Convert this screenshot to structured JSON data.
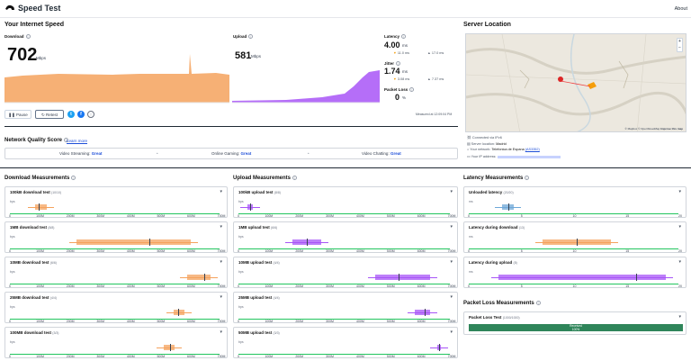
{
  "app": {
    "title": "Speed Test",
    "about": "About"
  },
  "speed": {
    "section_title": "Your Internet Speed",
    "download": {
      "label": "Download",
      "value": "702",
      "unit": "Mbps",
      "color": "#f5a25d"
    },
    "upload": {
      "label": "Upload",
      "value": "581",
      "unit": "Mbps",
      "color": "#a855f7"
    },
    "latency": {
      "label": "Latency",
      "value": "4.00",
      "unit": "ms",
      "down": "11.0 ms",
      "up": "17.0 ms"
    },
    "jitter": {
      "label": "Jitter",
      "value": "1.74",
      "unit": "ms",
      "down": "3.08 ms",
      "up": "7.37 ms"
    },
    "packet_loss": {
      "label": "Packet Loss",
      "value": "0",
      "unit": "%"
    },
    "measured_at": "Measured at 12:09:04 PM",
    "pause": "Pause",
    "retest": "Retest"
  },
  "server": {
    "section_title": "Server Location",
    "connected": "Connected via IPv6",
    "location_label": "Server location:",
    "location": "Madrid",
    "network_label": "Your network:",
    "network": "Telefonica de Espana",
    "asn": "(AS3352)",
    "ip_label": "Your IP address:",
    "map_credit": "© Mapbox © OpenStreetMap",
    "map_improve": "Improve this map"
  },
  "quality": {
    "title": "Network Quality Score",
    "learn_more": "Learn more",
    "items": [
      {
        "label": "Video Streaming:",
        "value": "Great"
      },
      {
        "label": "Online Gaming:",
        "value": "Great"
      },
      {
        "label": "Video Chatting:",
        "value": "Great"
      }
    ]
  },
  "download_measurements": {
    "title": "Download Measurements",
    "unit": "bps",
    "ticks": [
      "0",
      "100M",
      "200M",
      "300M",
      "400M",
      "500M",
      "600M",
      "700M"
    ],
    "tests": [
      {
        "name": "100kB download test",
        "count": "(10/10)",
        "range": [
          88,
          130
        ],
        "median": 103
      },
      {
        "name": "1MB download test",
        "count": "(8/8)",
        "range": [
          237,
          643
        ],
        "median": 495
      },
      {
        "name": "10MB download test",
        "count": "(6/6)",
        "range": [
          628,
          712
        ],
        "median": 689
      },
      {
        "name": "25MB download test",
        "count": "(4/4)",
        "range": [
          582,
          620
        ],
        "median": 598
      },
      {
        "name": "100MB download test",
        "count": "(3/3)",
        "range": [
          547,
          585
        ],
        "median": 567
      }
    ]
  },
  "upload_measurements": {
    "title": "Upload Measurements",
    "unit": "bps",
    "ticks": [
      "0",
      "100M",
      "200M",
      "300M",
      "400M",
      "500M",
      "600M",
      "700M"
    ],
    "tests": [
      {
        "name": "100kB upload test",
        "count": "(8/8)",
        "range": [
          32,
          52
        ],
        "median": 41
      },
      {
        "name": "1MB upload test",
        "count": "(6/6)",
        "range": [
          190,
          290
        ],
        "median": 240
      },
      {
        "name": "10MB upload test",
        "count": "(4/4)",
        "range": [
          482,
          673
        ],
        "median": 563
      },
      {
        "name": "25MB upload test",
        "count": "(4/4)",
        "range": [
          620,
          673
        ],
        "median": 655
      },
      {
        "name": "50MB upload test",
        "count": "(3/3)",
        "range": [
          698,
          712
        ],
        "median": 705
      }
    ]
  },
  "latency_measurements": {
    "title": "Latency Measurements",
    "unit": "ms",
    "ticks": [
      "0",
      "5",
      "10",
      "15",
      "20"
    ],
    "tests": [
      {
        "name": "Unloaded latency",
        "count": "(20/20)",
        "range": [
          3.4,
          4.6
        ],
        "median": 4.0
      },
      {
        "name": "Latency during download",
        "count": "(13)",
        "range": [
          7.5,
          14.5
        ],
        "median": 11.0
      },
      {
        "name": "Latency during upload",
        "count": "(8)",
        "range": [
          3.0,
          20.0
        ],
        "median": 17.0
      }
    ]
  },
  "packet_loss_measurements": {
    "title": "Packet Loss Measurements",
    "test_name": "Packet Loss Test",
    "count": "(1000/1000)",
    "received_label": "Received",
    "received_pct": "100%"
  }
}
